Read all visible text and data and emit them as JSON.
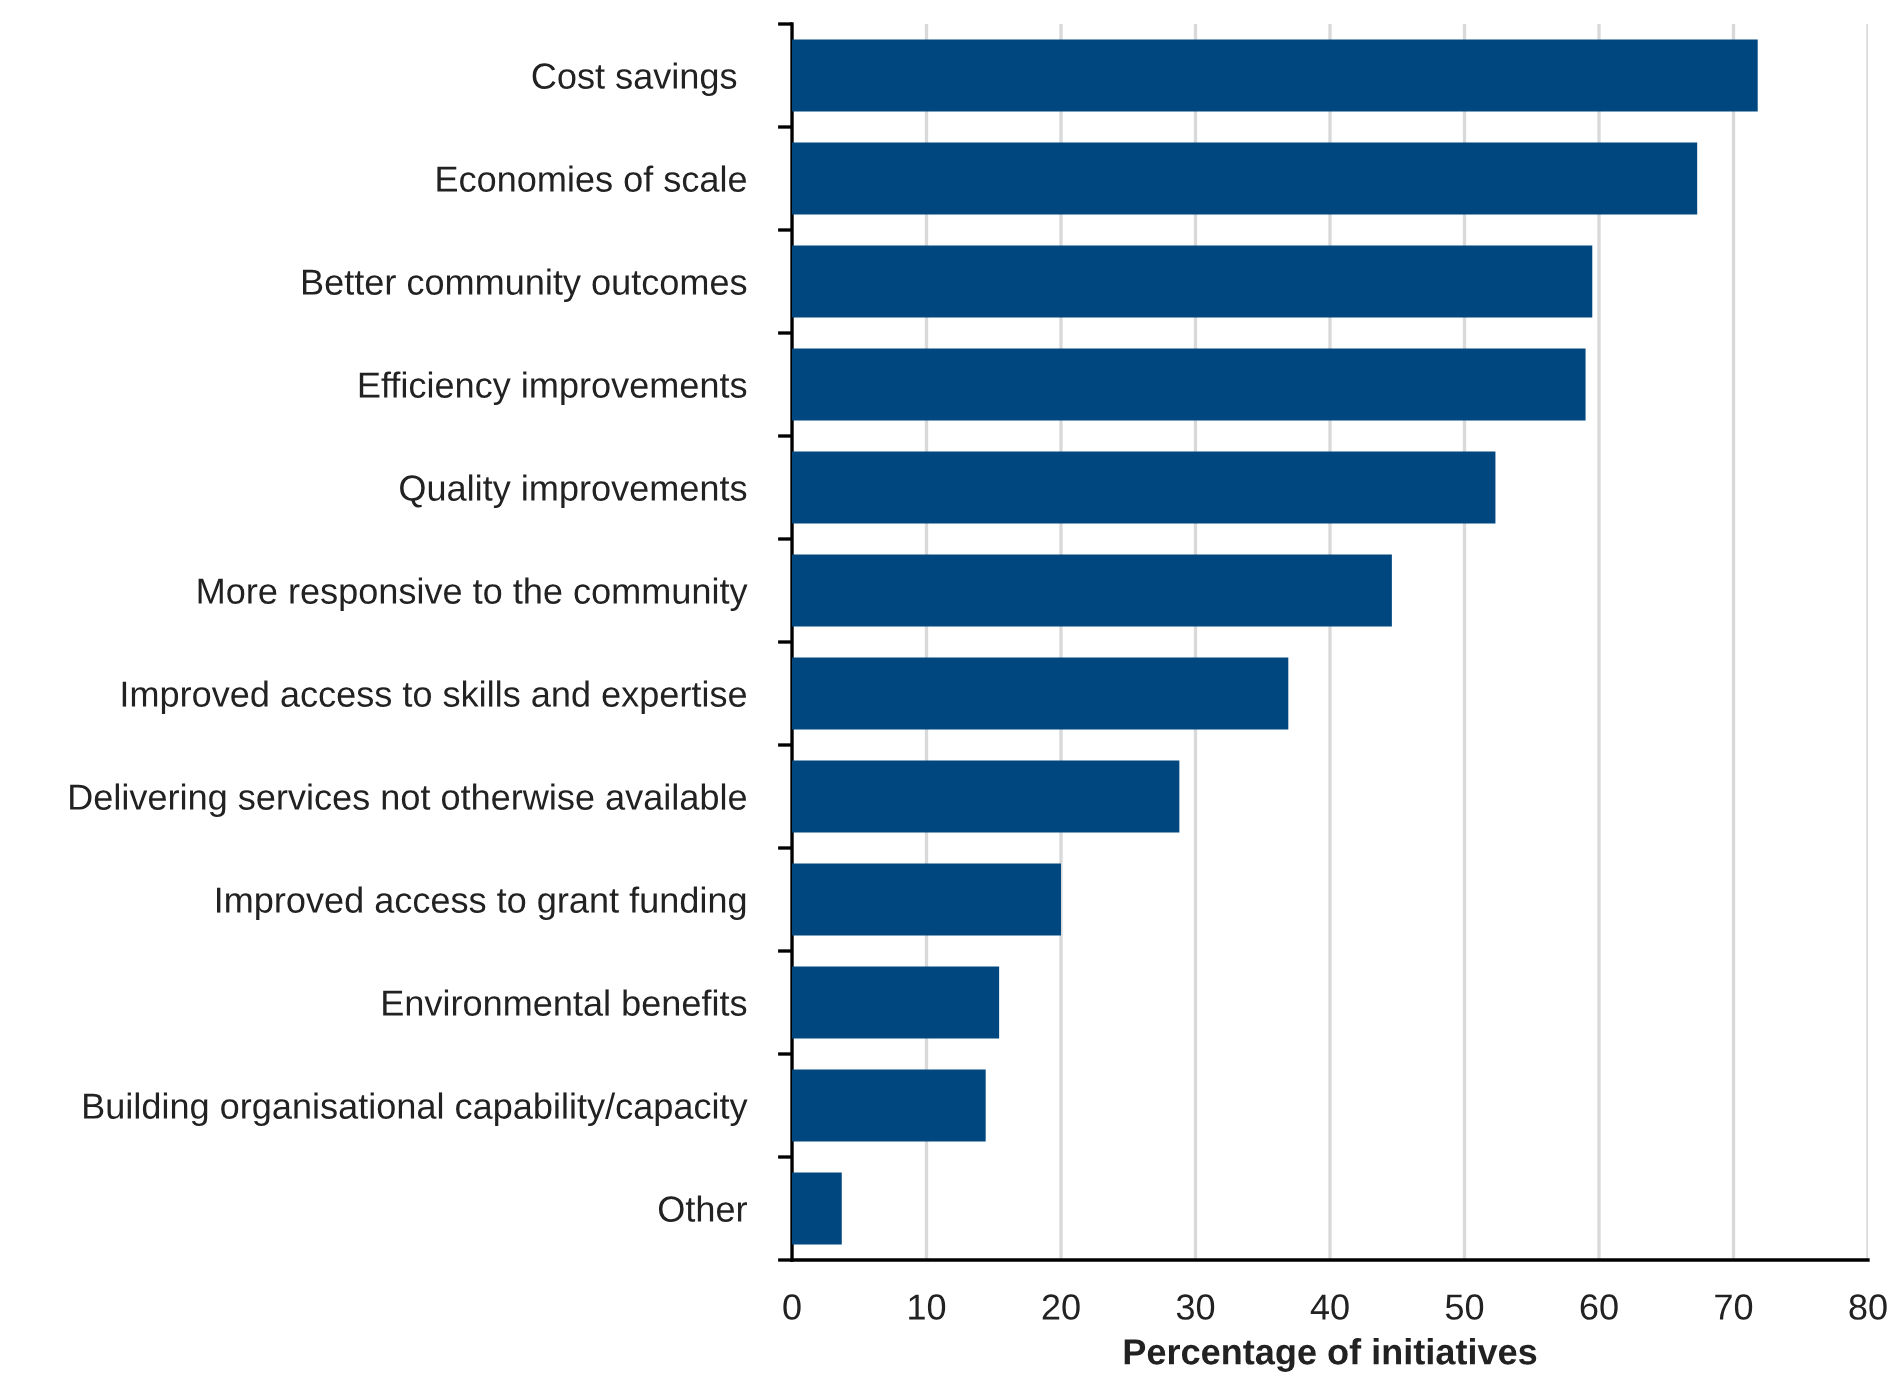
{
  "chart_data": {
    "type": "bar",
    "orientation": "horizontal",
    "xlabel": "Percentage of initiatives",
    "categories": [
      "Cost savings ",
      "Economies of scale",
      "Better community outcomes",
      "Efficiency improvements",
      "Quality improvements",
      "More responsive to the community",
      "Improved access to skills and expertise",
      "Delivering services not otherwise available",
      "Improved access to grant funding",
      "Environmental benefits",
      "Building organisational capability/capacity",
      "Other"
    ],
    "values": [
      71.8,
      67.3,
      59.5,
      59.0,
      52.3,
      44.6,
      36.9,
      28.8,
      20.0,
      15.4,
      14.4,
      3.7
    ],
    "color": "#00467f",
    "xlim": [
      0,
      80
    ],
    "xticks": [
      0,
      10,
      20,
      30,
      40,
      50,
      60,
      70,
      80
    ],
    "grid": "x"
  }
}
